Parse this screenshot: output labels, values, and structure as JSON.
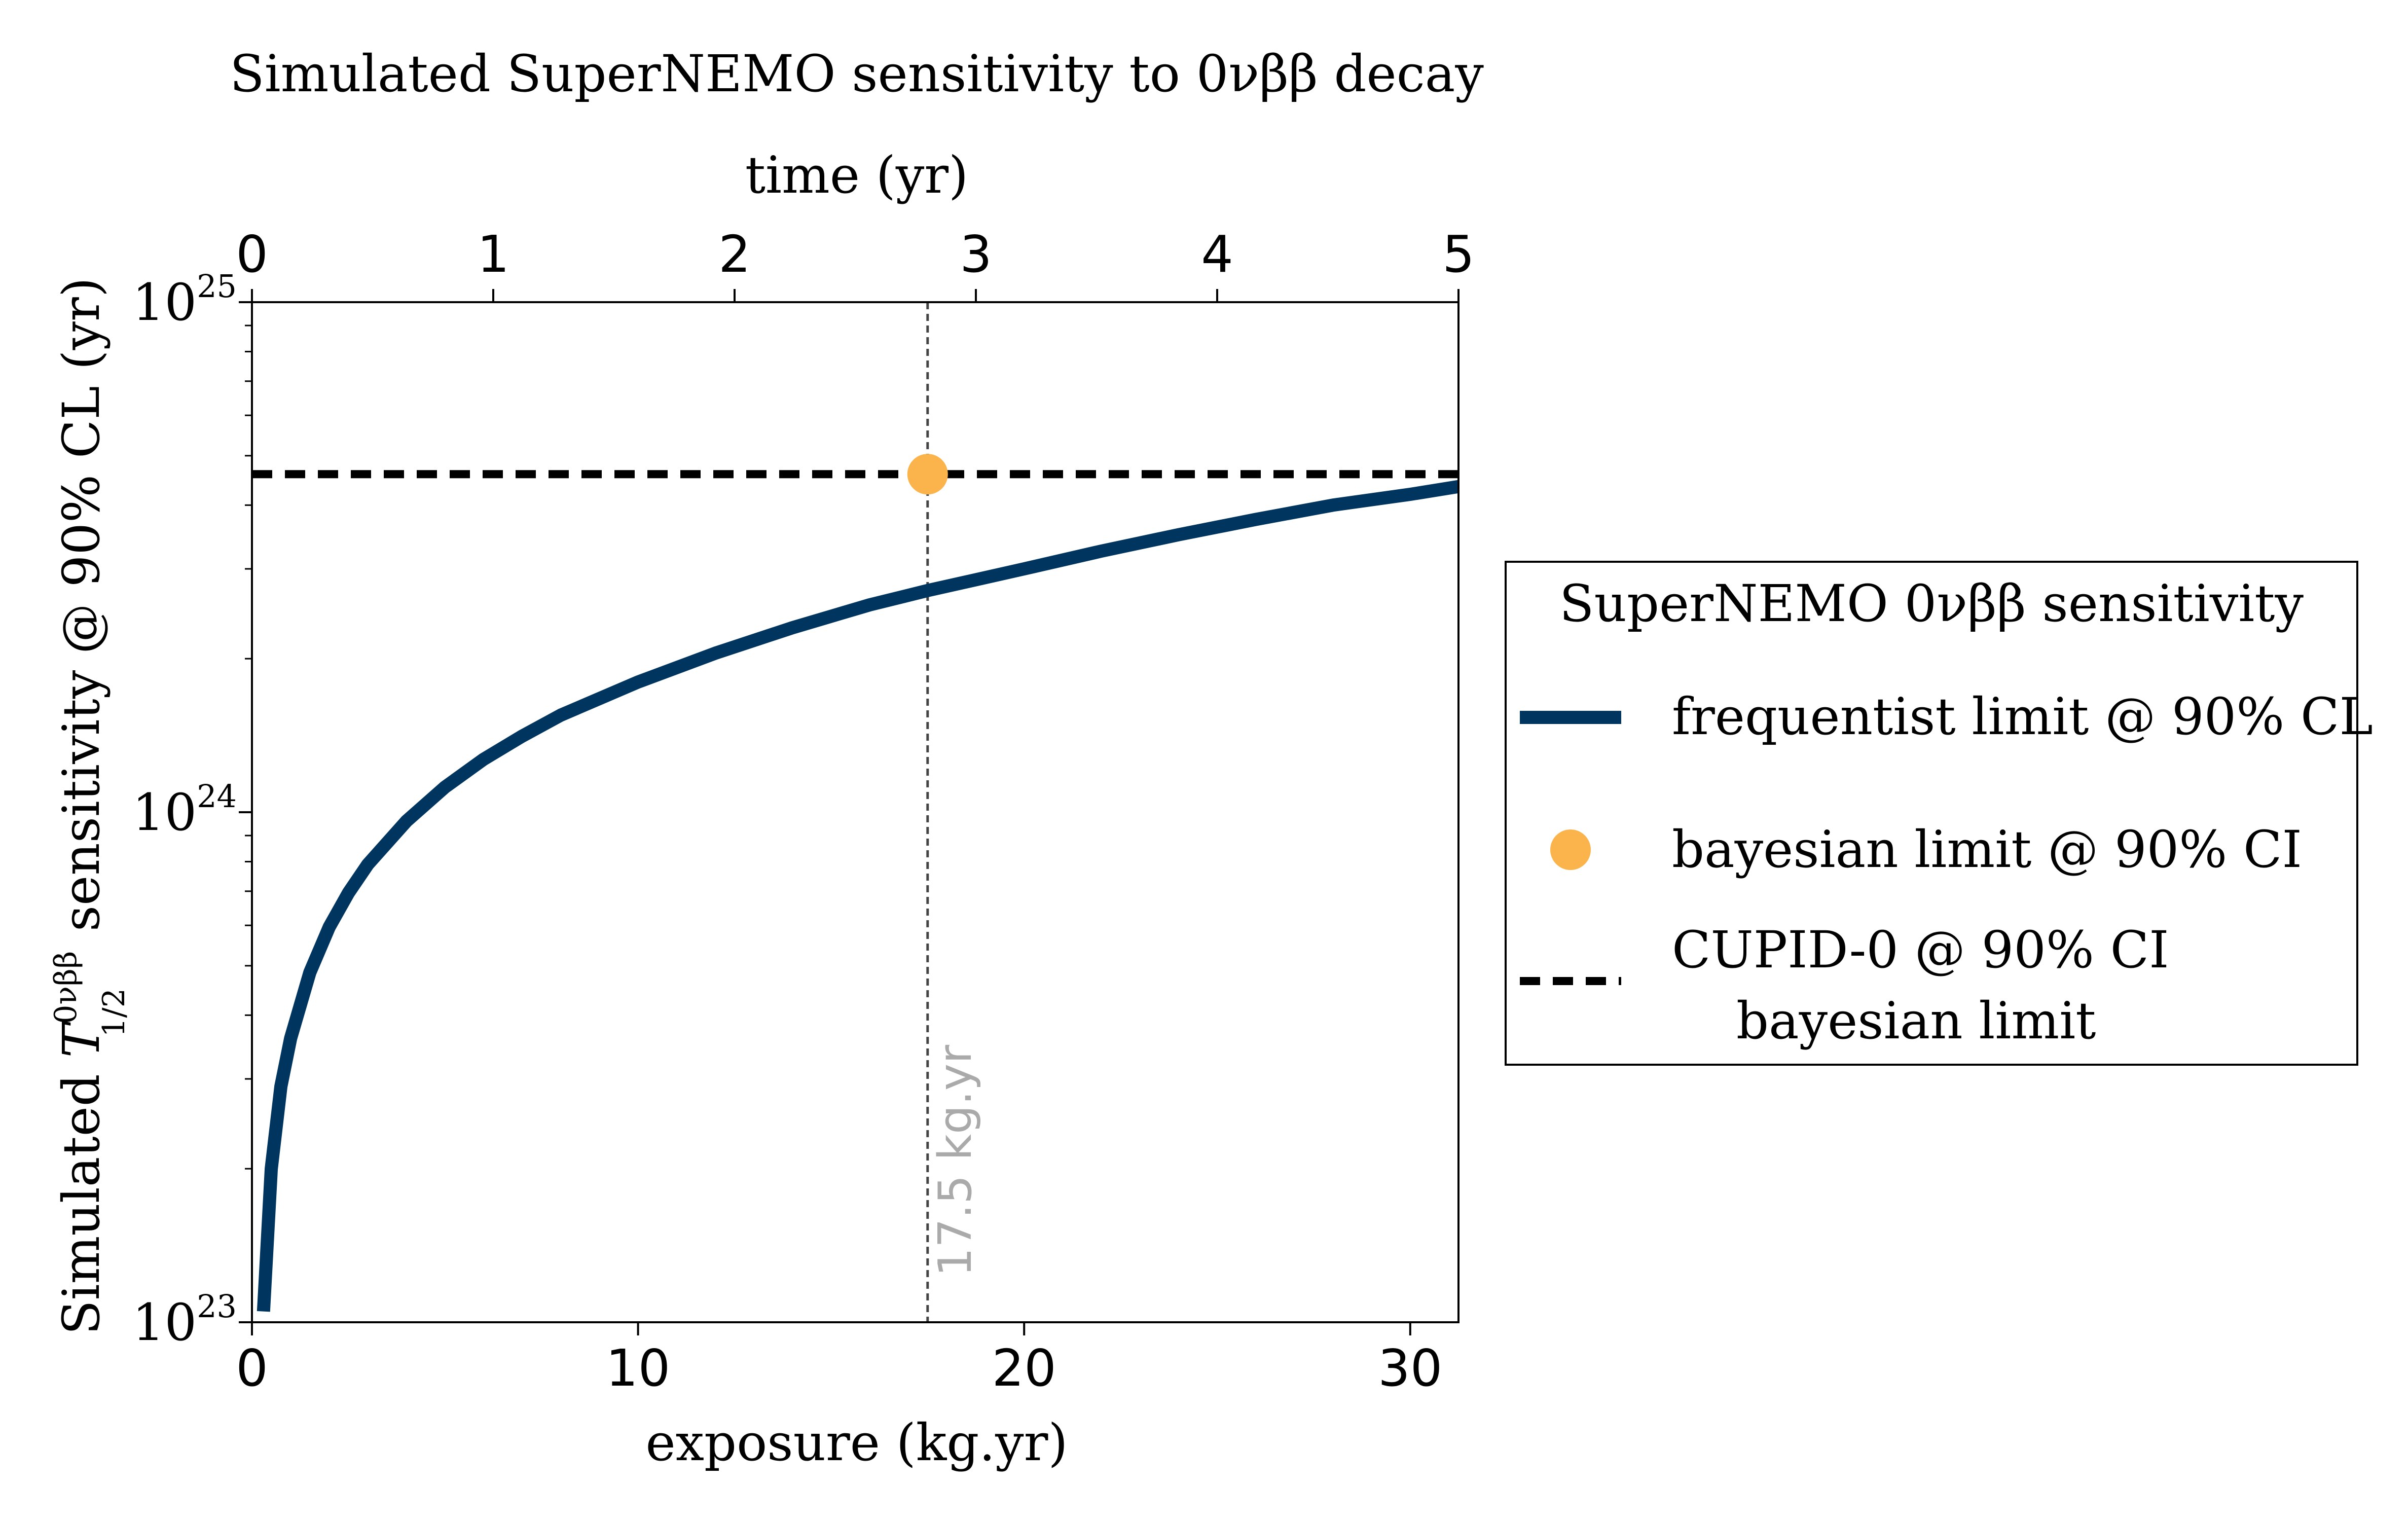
{
  "chart_data": {
    "type": "line",
    "title": "Simulated SuperNEMO sensitivity to 0νββ decay",
    "xlabel": "exposure (kg.yr)",
    "top_xlabel": "time (yr)",
    "ylabel": "Simulated T_{1/2}^{0νββ} sensitivity @ 90% CL (yr)",
    "ylabel_parts": {
      "prefix": "Simulated ",
      "symbol": "T",
      "superscript": "0νββ",
      "subscript": "1/2",
      "suffix": " sensitivity @ 90% CL (yr)"
    },
    "xlim": [
      0,
      31.25
    ],
    "top_xlim": [
      0,
      5
    ],
    "ylim": [
      1e+23,
      1e+25
    ],
    "yscale": "log",
    "x_ticks": [
      "0",
      "10",
      "20",
      "30"
    ],
    "x_tick_values": [
      0,
      10,
      20,
      30
    ],
    "top_x_ticks": [
      "0",
      "1",
      "2",
      "3",
      "4",
      "5"
    ],
    "top_x_tick_values": [
      0,
      1,
      2,
      3,
      4,
      5
    ],
    "y_ticks": [
      {
        "value": 1e+23,
        "base": "10",
        "exp": "23"
      },
      {
        "value": 1e+24,
        "base": "10",
        "exp": "24"
      },
      {
        "value": 1e+25,
        "base": "10",
        "exp": "25"
      }
    ],
    "grid": false,
    "series": [
      {
        "name": "frequentist limit @ 90% CL",
        "style": "solid",
        "color": "#00355f",
        "x": [
          0.3,
          0.5,
          0.75,
          1,
          1.5,
          2,
          2.5,
          3,
          4,
          5,
          6,
          7,
          8,
          10,
          12,
          14,
          16,
          17.5,
          20,
          22,
          24,
          26,
          28,
          30,
          31.25
        ],
        "y": [
          1.05e+23,
          2e+23,
          2.9e+23,
          3.6e+23,
          4.85e+23,
          5.95e+23,
          6.95e+23,
          7.9e+23,
          9.6e+23,
          1.12e+24,
          1.27e+24,
          1.41e+24,
          1.55e+24,
          1.8e+24,
          2.05e+24,
          2.3e+24,
          2.55e+24,
          2.72e+24,
          3e+24,
          3.25e+24,
          3.5e+24,
          3.75e+24,
          4e+24,
          4.2e+24,
          4.35e+24
        ]
      },
      {
        "name": "bayesian limit @ 90% CI",
        "style": "marker",
        "color": "#fbb34c",
        "x": [
          17.5
        ],
        "y": [
          4.6e+24
        ]
      },
      {
        "name": "CUPID-0 @ 90% CI bayesian limit",
        "style": "dashed",
        "color": "#000000",
        "y": 4.6e+24
      }
    ],
    "annotations": [
      {
        "type": "vline",
        "x": 17.5,
        "label": "17.5 kg.yr",
        "color": "#444444",
        "label_color": "#aaaaaa"
      }
    ],
    "legend": {
      "title": "SuperNEMO 0νββ sensitivity",
      "placement": "right, outside",
      "entries": [
        {
          "label_lines": [
            "frequentist limit @ 90% CL"
          ],
          "style": "solid",
          "color": "#00355f"
        },
        {
          "label_lines": [
            "bayesian limit @ 90% CI"
          ],
          "style": "marker",
          "color": "#fbb34c"
        },
        {
          "label_lines": [
            "CUPID-0 @ 90% CI",
            "bayesian limit"
          ],
          "style": "dashed",
          "color": "#000000"
        }
      ]
    }
  }
}
